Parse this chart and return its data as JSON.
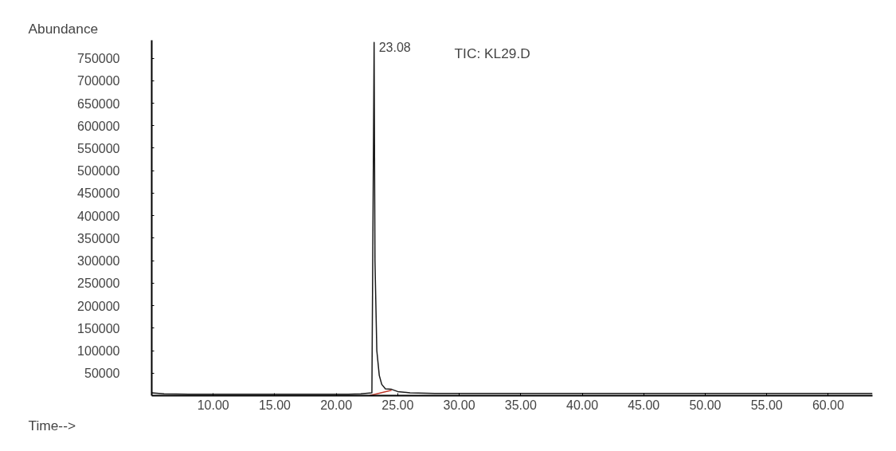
{
  "chart_data": {
    "type": "line",
    "title": "TIC: KL29.D",
    "xlabel": "Time-->",
    "ylabel": "Abundance",
    "annotations": [
      {
        "text": "23.08",
        "x": 23.08,
        "y": 785000
      }
    ],
    "series": [
      {
        "color": "#1a1a1a",
        "values": [
          6000,
          4000,
          3000,
          3000,
          3000,
          3000,
          3000,
          3000,
          3000,
          4000,
          6000,
          785000,
          300000,
          100000,
          45000,
          25000,
          15000,
          14000,
          9000,
          6000,
          5000,
          5000,
          5000,
          5000,
          5000,
          5000,
          5000,
          5000,
          5000,
          5000
        ],
        "x": [
          5,
          6,
          8,
          10,
          12,
          15,
          18,
          20,
          21,
          22,
          22.9,
          23.08,
          23.15,
          23.3,
          23.5,
          23.7,
          24.0,
          24.5,
          25.0,
          26.0,
          28,
          30,
          35,
          40,
          45,
          50,
          55,
          60,
          62,
          63.6
        ]
      },
      {
        "color": "#c0392b",
        "values": [
          0,
          12000
        ],
        "x": [
          22.7,
          24.5
        ]
      }
    ],
    "xlim": [
      5,
      63.6
    ],
    "ylim": [
      0,
      790000
    ],
    "xticks": [
      {
        "value": 10,
        "label": "10.00"
      },
      {
        "value": 15,
        "label": "15.00"
      },
      {
        "value": 20,
        "label": "20.00"
      },
      {
        "value": 25,
        "label": "25.00"
      },
      {
        "value": 30,
        "label": "30.00"
      },
      {
        "value": 35,
        "label": "35.00"
      },
      {
        "value": 40,
        "label": "40.00"
      },
      {
        "value": 45,
        "label": "45.00"
      },
      {
        "value": 50,
        "label": "50.00"
      },
      {
        "value": 55,
        "label": "55.00"
      },
      {
        "value": 60,
        "label": "60.00"
      }
    ],
    "yticks": [
      50000,
      100000,
      150000,
      200000,
      250000,
      300000,
      350000,
      400000,
      450000,
      500000,
      550000,
      600000,
      650000,
      700000,
      750000
    ],
    "grid": false
  }
}
